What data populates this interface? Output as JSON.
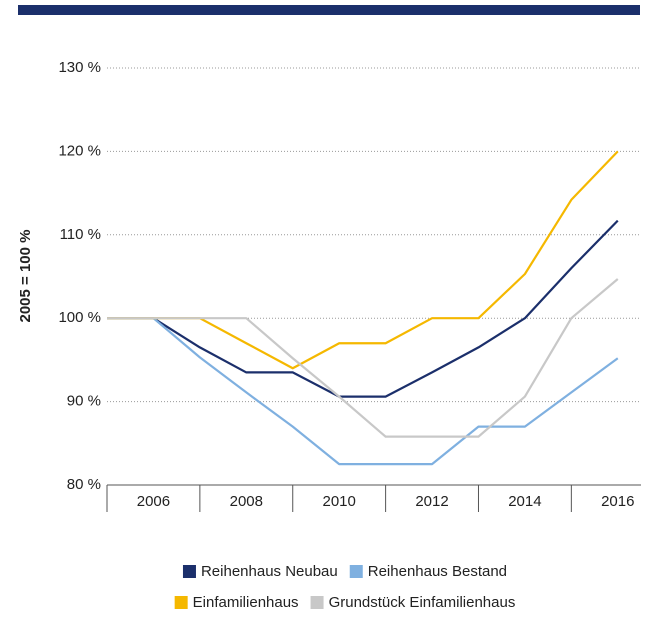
{
  "chart_data": {
    "type": "line",
    "y_axis_label": "2005 = 100 %",
    "x": [
      2005,
      2006,
      2007,
      2008,
      2009,
      2010,
      2011,
      2012,
      2013,
      2014,
      2015,
      2016
    ],
    "xlim": [
      2005,
      2016.5
    ],
    "xticks": [
      2006,
      2008,
      2010,
      2012,
      2014,
      2016
    ],
    "ylim": [
      80,
      130
    ],
    "yticks": [
      {
        "value": 80,
        "label": "80 %"
      },
      {
        "value": 90,
        "label": "90 %"
      },
      {
        "value": 100,
        "label": "100 %"
      },
      {
        "value": 110,
        "label": "110 %"
      },
      {
        "value": 120,
        "label": "120 %"
      },
      {
        "value": 130,
        "label": "130 %"
      }
    ],
    "grid": true,
    "legend_position": "bottom",
    "series": [
      {
        "name": "Reihenhaus Neubau",
        "color": "#1b2f6b",
        "values": [
          100,
          100,
          96.5,
          93.5,
          93.5,
          90.6,
          90.6,
          93.5,
          96.5,
          100,
          106,
          111.7
        ]
      },
      {
        "name": "Reihenhaus Bestand",
        "color": "#7fb0e0",
        "values": [
          100,
          100,
          95.3,
          91.1,
          87,
          82.5,
          82.5,
          82.5,
          87,
          87,
          91.1,
          95.2
        ]
      },
      {
        "name": "Einfamilienhaus",
        "color": "#f5b800",
        "values": [
          100,
          100,
          100,
          97,
          94,
          97,
          97,
          100,
          100,
          105.3,
          114.2,
          120
        ]
      },
      {
        "name": "Grundstück Einfamilienhaus",
        "color": "#c8c8c8",
        "values": [
          100,
          100,
          100,
          100,
          95.2,
          90.6,
          85.8,
          85.8,
          85.8,
          90.6,
          100,
          104.7
        ]
      }
    ]
  }
}
